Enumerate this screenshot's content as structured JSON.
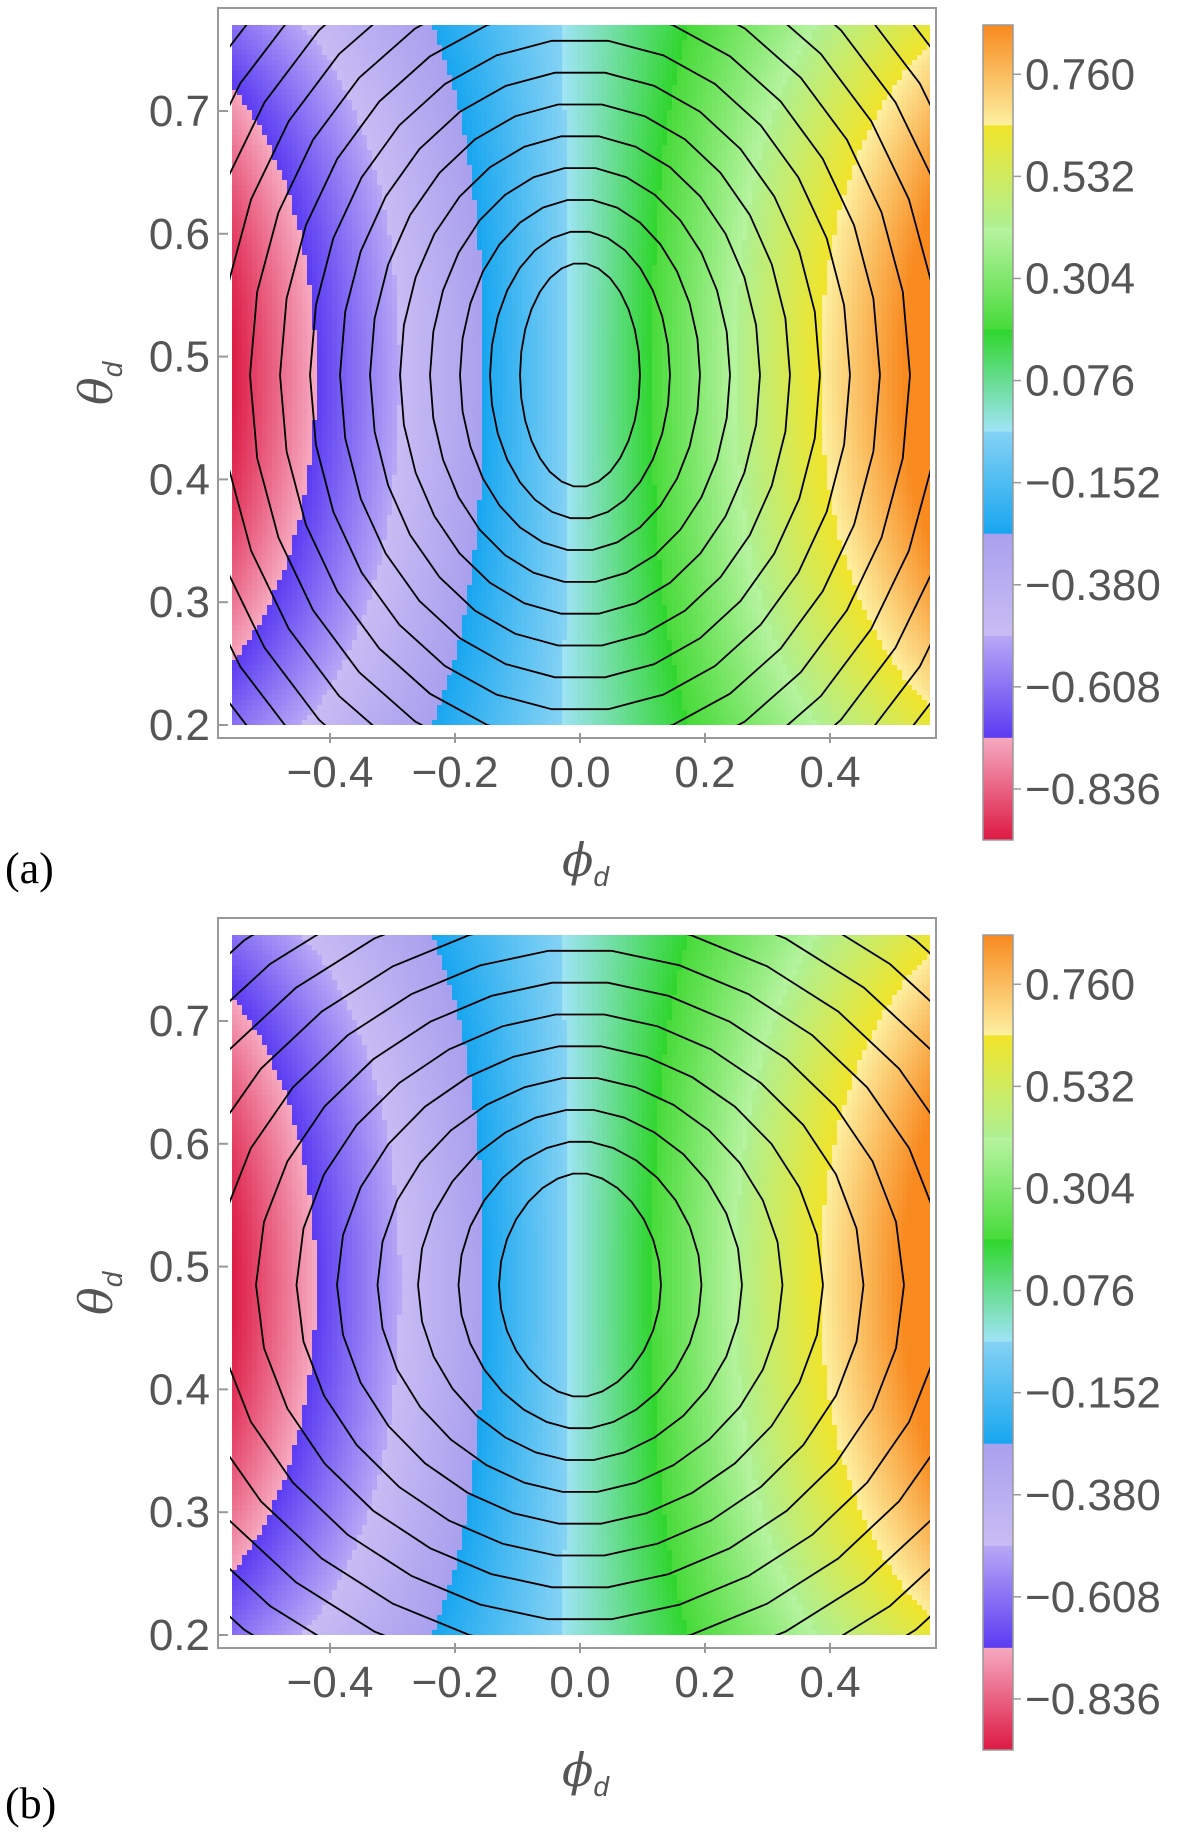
{
  "chart_data": [
    {
      "type": "heatmap",
      "panel_label": "(a)",
      "xlabel": "ϕ",
      "xlabel_sub": "d",
      "ylabel": "θ",
      "ylabel_sub": "d",
      "xlim": [
        -0.56,
        0.56
      ],
      "ylim": [
        0.2,
        0.77
      ],
      "x_ticks": [
        -0.4,
        -0.2,
        0.0,
        0.2,
        0.4
      ],
      "x_tick_labels": [
        "−0.4",
        "−0.2",
        "0.0",
        "0.2",
        "0.4"
      ],
      "y_ticks": [
        0.2,
        0.3,
        0.4,
        0.5,
        0.6,
        0.7
      ],
      "y_tick_labels": [
        "0.2",
        "0.3",
        "0.4",
        "0.5",
        "0.6",
        "0.7"
      ],
      "colorbar_ticks": [
        0.76,
        0.532,
        0.304,
        0.076,
        -0.152,
        -0.38,
        -0.608,
        -0.836
      ],
      "colorbar_tick_labels": [
        "0.760",
        "0.532",
        "0.304",
        "0.076",
        "−0.152",
        "−0.380",
        "−0.608",
        "−0.836"
      ],
      "colorbar_range": [
        -0.95,
        0.87
      ],
      "z_at_phi_edges_theta_center": [
        -0.95,
        0.87
      ],
      "contour_count": 14
    },
    {
      "type": "heatmap",
      "panel_label": "(b)",
      "xlabel": "ϕ",
      "xlabel_sub": "d",
      "ylabel": "θ",
      "ylabel_sub": "d",
      "xlim": [
        -0.56,
        0.56
      ],
      "ylim": [
        0.2,
        0.77
      ],
      "x_ticks": [
        -0.4,
        -0.2,
        0.0,
        0.2,
        0.4
      ],
      "x_tick_labels": [
        "−0.4",
        "−0.2",
        "0.0",
        "0.2",
        "0.4"
      ],
      "y_ticks": [
        0.2,
        0.3,
        0.4,
        0.5,
        0.6,
        0.7
      ],
      "y_tick_labels": [
        "0.2",
        "0.3",
        "0.4",
        "0.5",
        "0.6",
        "0.7"
      ],
      "colorbar_ticks": [
        0.76,
        0.532,
        0.304,
        0.076,
        -0.152,
        -0.38,
        -0.608,
        -0.836
      ],
      "colorbar_tick_labels": [
        "0.760",
        "0.532",
        "0.304",
        "0.076",
        "−0.152",
        "−0.380",
        "−0.608",
        "−0.836"
      ],
      "colorbar_range": [
        -0.95,
        0.87
      ],
      "z_at_phi_edges_theta_center": [
        -0.95,
        0.87
      ],
      "contour_count": 14
    }
  ],
  "colorbar_bands": [
    {
      "from": -0.95,
      "to": -0.722,
      "colors": [
        "#dd1a44",
        "#f6a9c0"
      ]
    },
    {
      "from": -0.722,
      "to": -0.494,
      "colors": [
        "#5b3cf2",
        "#b7a8f6"
      ]
    },
    {
      "from": -0.494,
      "to": -0.266,
      "colors": [
        "#c9bcf4",
        "#a9a0ee"
      ]
    },
    {
      "from": -0.266,
      "to": -0.038,
      "colors": [
        "#18a6f0",
        "#84d2f4"
      ]
    },
    {
      "from": -0.038,
      "to": 0.19,
      "colors": [
        "#9fe4f6",
        "#2fd62c"
      ]
    },
    {
      "from": 0.19,
      "to": 0.418,
      "colors": [
        "#48db3a",
        "#b8f4a0"
      ]
    },
    {
      "from": 0.418,
      "to": 0.646,
      "colors": [
        "#aef092",
        "#f1e42a"
      ]
    },
    {
      "from": 0.646,
      "to": 0.87,
      "colors": [
        "#fdf0a0",
        "#f88a20"
      ]
    }
  ]
}
